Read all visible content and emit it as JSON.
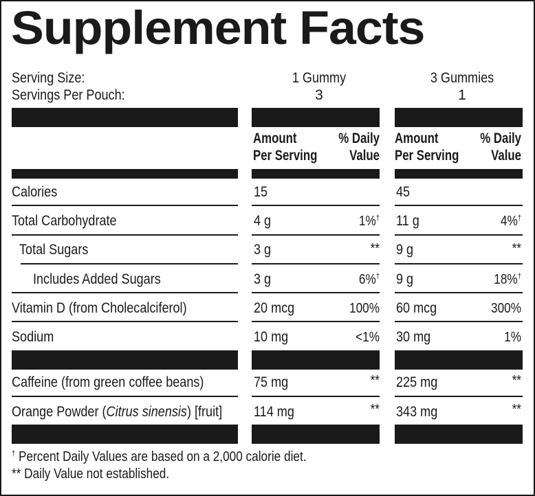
{
  "title": "Supplement Facts",
  "serving": {
    "size_label": "Serving Size:",
    "per_pouch_label": "Servings Per Pouch:",
    "col1_size": "1 Gummy",
    "col1_servings": "3",
    "col2_size": "3  Gummies",
    "col2_servings": "1"
  },
  "headers": {
    "amount_line1": "Amount",
    "amount_line2": "Per Serving",
    "dv_line1": "% Daily",
    "dv_line2": "Value"
  },
  "rows": [
    {
      "label": "Calories",
      "c1_amount": "15",
      "c1_dv": "",
      "c1_mark": "",
      "c2_amount": "45",
      "c2_dv": "",
      "c2_mark": ""
    },
    {
      "label": "Total Carbohydrate",
      "c1_amount": "4 g",
      "c1_dv": "1%",
      "c1_mark": "†",
      "c2_amount": "11 g",
      "c2_dv": "4%",
      "c2_mark": "†"
    },
    {
      "label": "Total Sugars",
      "c1_amount": "3 g",
      "c1_dv": "**",
      "c1_mark": "",
      "c2_amount": "9 g",
      "c2_dv": "**",
      "c2_mark": ""
    },
    {
      "label": "Includes Added Sugars",
      "c1_amount": "3 g",
      "c1_dv": "6%",
      "c1_mark": "†",
      "c2_amount": "9 g",
      "c2_dv": "18%",
      "c2_mark": "†"
    },
    {
      "label": "Vitamin D (from Cholecalciferol)",
      "c1_amount": "20 mcg",
      "c1_dv": "100%",
      "c1_mark": "",
      "c2_amount": "60 mcg",
      "c2_dv": "300%",
      "c2_mark": ""
    },
    {
      "label": "Sodium",
      "c1_amount": "10 mg",
      "c1_dv": "<1%",
      "c1_mark": "",
      "c2_amount": "30 mg",
      "c2_dv": "1%",
      "c2_mark": ""
    }
  ],
  "other_rows": [
    {
      "label": "Caffeine (from green coffee beans)",
      "c1_amount": "75 mg",
      "c1_dv": "**",
      "c2_amount": "225 mg",
      "c2_dv": "**"
    },
    {
      "label_pre": "Orange Powder (",
      "label_italic": "Citrus sinensis",
      "label_post": ") [fruit]",
      "c1_amount": "114 mg",
      "c1_dv": "**",
      "c2_amount": "343 mg",
      "c2_dv": "**"
    }
  ],
  "footnotes": {
    "dagger_mark": "†",
    "dagger_text": " Percent Daily Values are based on a 2,000 calorie diet.",
    "star_text": "** Daily Value not established."
  }
}
